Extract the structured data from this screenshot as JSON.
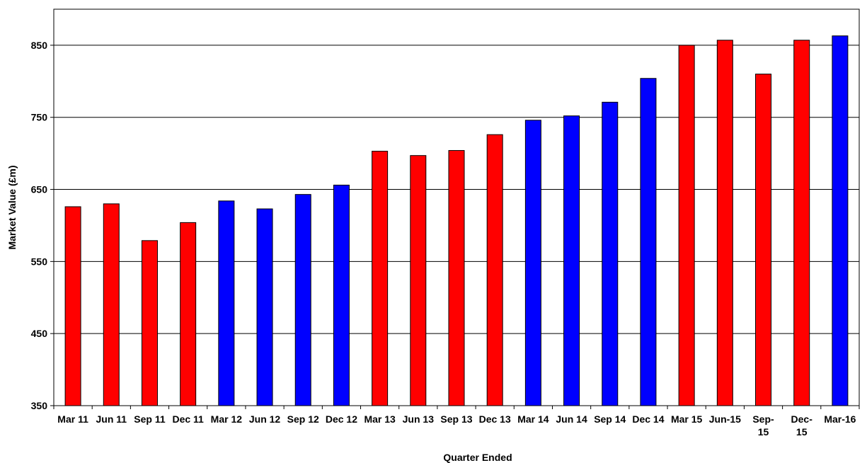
{
  "chart_data": {
    "type": "bar",
    "title": "",
    "xlabel": "Quarter Ended",
    "ylabel": "Market Value (£m)",
    "ylim": [
      350,
      900
    ],
    "yticks": [
      350,
      450,
      550,
      650,
      750,
      850
    ],
    "grid": true,
    "legend": "none",
    "categories": [
      "Mar 11",
      "Jun 11",
      "Sep 11",
      "Dec 11",
      "Mar 12",
      "Jun 12",
      "Sep 12",
      "Dec 12",
      "Mar 13",
      "Jun 13",
      "Sep 13",
      "Dec 13",
      "Mar 14",
      "Jun 14",
      "Sep 14",
      "Dec 14",
      "Mar 15",
      "Jun-15",
      "Sep-15",
      "Dec-15",
      "Mar-16"
    ],
    "values": [
      626,
      630,
      579,
      604,
      634,
      623,
      643,
      656,
      703,
      697,
      704,
      726,
      746,
      752,
      771,
      804,
      850,
      857,
      810,
      857,
      863
    ],
    "bar_colors": [
      "#ff0000",
      "#ff0000",
      "#ff0000",
      "#ff0000",
      "#0000ff",
      "#0000ff",
      "#0000ff",
      "#0000ff",
      "#ff0000",
      "#ff0000",
      "#ff0000",
      "#ff0000",
      "#0000ff",
      "#0000ff",
      "#0000ff",
      "#0000ff",
      "#ff0000",
      "#ff0000",
      "#ff0000",
      "#ff0000",
      "#0000ff"
    ]
  }
}
